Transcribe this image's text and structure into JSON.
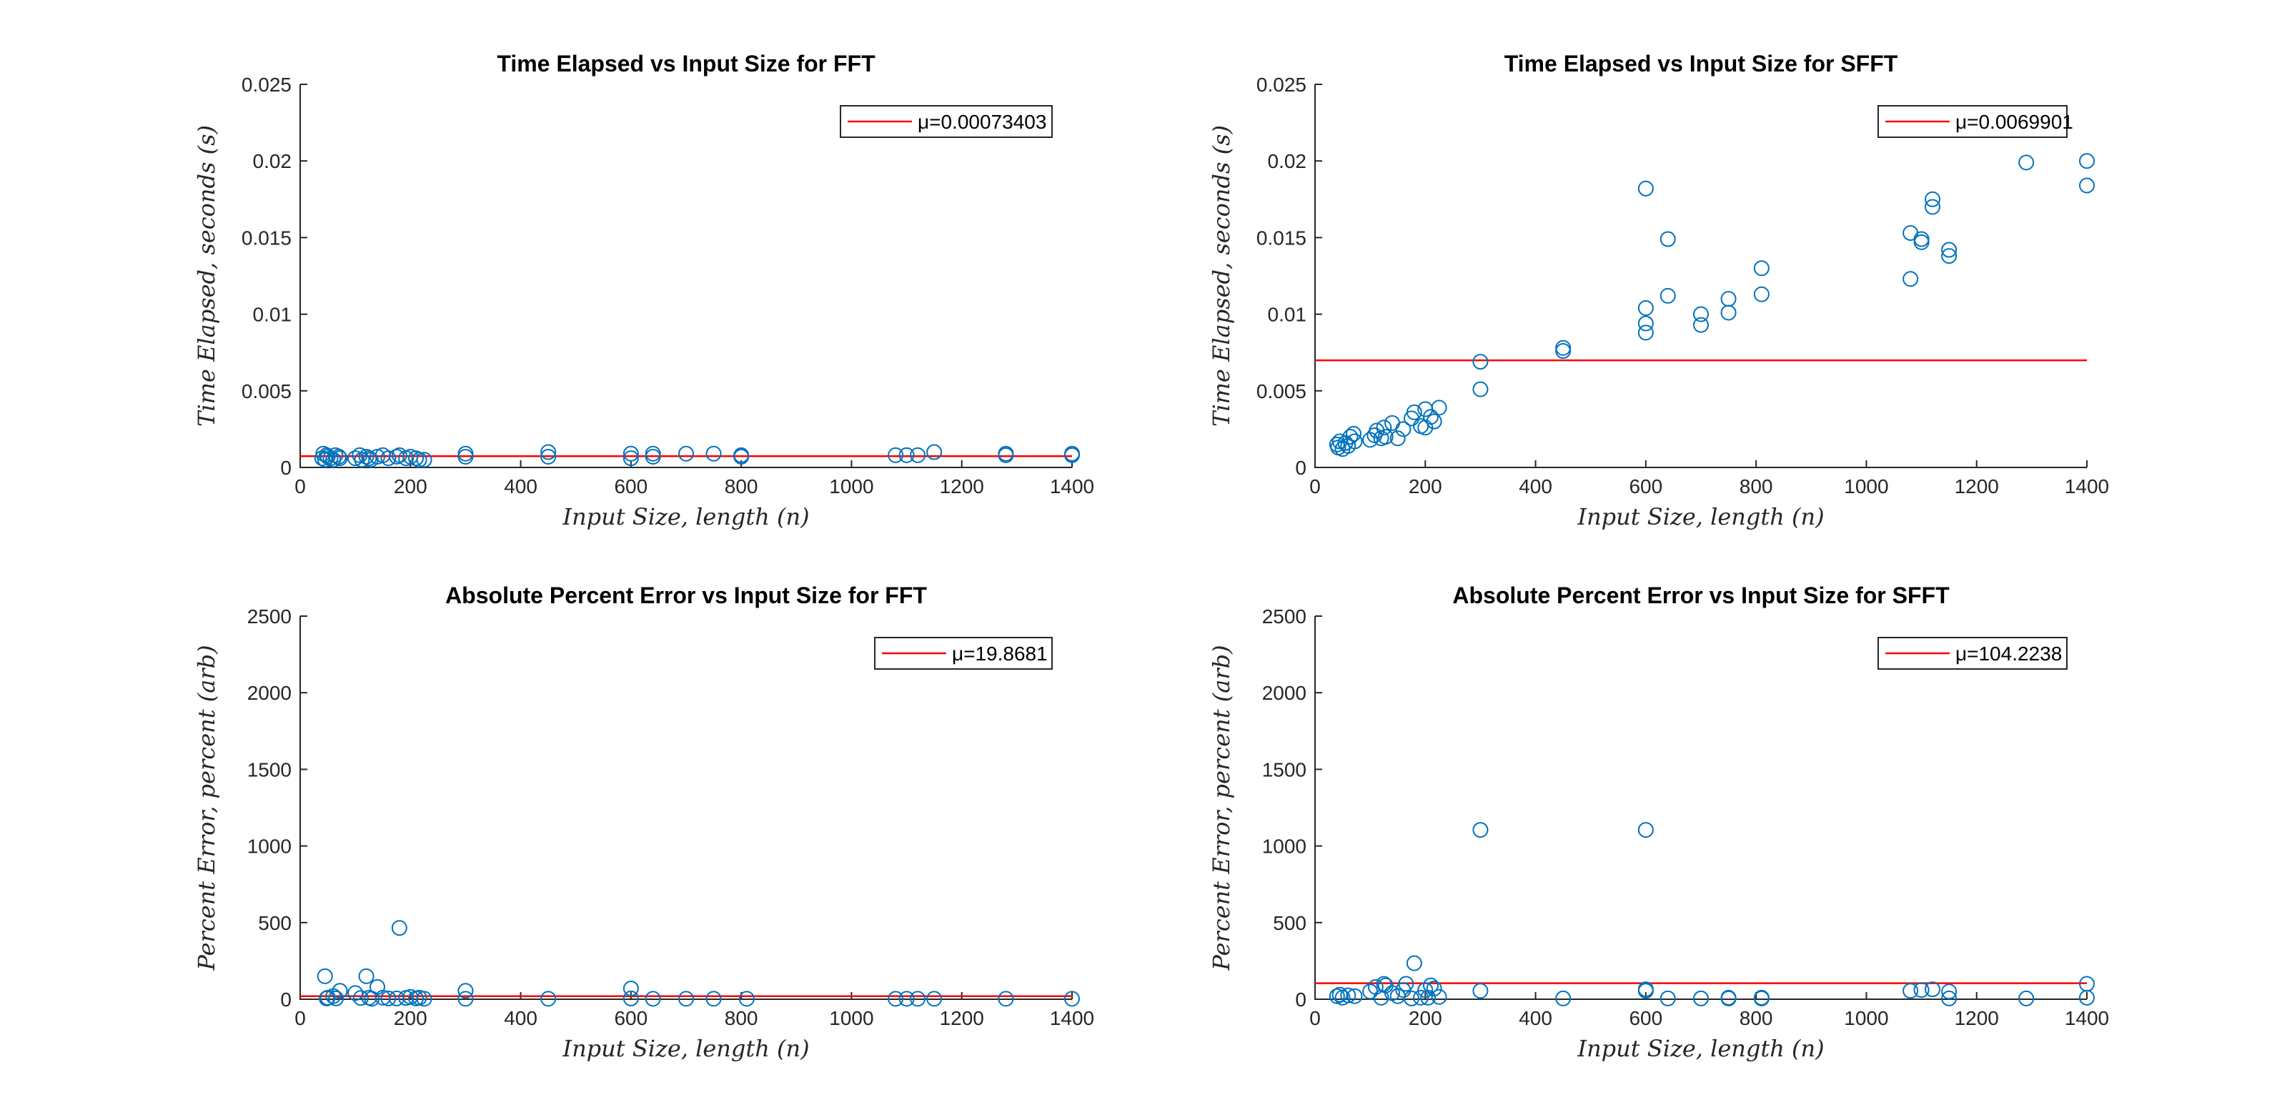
{
  "figure": {
    "colors": {
      "marker": "#0072BD",
      "mean_line": "#ff0000",
      "axis": "#262626"
    }
  },
  "chart_data": [
    {
      "type": "scatter",
      "title": "Time Elapsed vs Input Size for FFT",
      "xlabel": "Input Size, length (n)",
      "ylabel": "Time Elapsed, seconds (s)",
      "xlim": [
        0,
        1400
      ],
      "ylim": [
        0,
        0.025
      ],
      "xticks": [
        0,
        200,
        400,
        600,
        800,
        1000,
        1200,
        1400
      ],
      "yticks": [
        0,
        0.005,
        0.01,
        0.015,
        0.02,
        0.025
      ],
      "xtick_labels": [
        "0",
        "200",
        "400",
        "600",
        "800",
        "1000",
        "1200",
        "1400"
      ],
      "ytick_labels": [
        "0",
        "0.005",
        "0.01",
        "0.015",
        "0.02",
        "0.025"
      ],
      "mean": 0.00073403,
      "legend": {
        "label": "μ=0.00073403",
        "position": "top-right"
      },
      "grid": false,
      "x": [
        40,
        42,
        45,
        48,
        50,
        55,
        60,
        64,
        70,
        72,
        100,
        108,
        112,
        120,
        125,
        128,
        140,
        150,
        160,
        175,
        180,
        192,
        200,
        210,
        216,
        225,
        300,
        300,
        450,
        450,
        600,
        600,
        640,
        640,
        700,
        750,
        800,
        800,
        1080,
        1100,
        1120,
        1150,
        1280,
        1280,
        1400,
        1400
      ],
      "y": [
        0.0006,
        0.0009,
        0.0005,
        0.0008,
        0.0007,
        0.0006,
        0.0005,
        0.0008,
        0.0007,
        0.0006,
        0.0006,
        0.0008,
        0.0005,
        0.0007,
        0.0006,
        0.0005,
        0.0007,
        0.0008,
        0.0006,
        0.0007,
        0.0008,
        0.0006,
        0.0007,
        0.0006,
        0.0005,
        0.0005,
        0.0007,
        0.0009,
        0.0007,
        0.001,
        0.0006,
        0.0009,
        0.0007,
        0.0009,
        0.0009,
        0.0009,
        0.0007,
        0.0008,
        0.0008,
        0.0008,
        0.0008,
        0.001,
        0.0008,
        0.0009,
        0.0008,
        0.0009
      ]
    },
    {
      "type": "scatter",
      "title": "Time Elapsed vs Input Size for SFFT",
      "xlabel": "Input Size, length (n)",
      "ylabel": "Time Elapsed, seconds (s)",
      "xlim": [
        0,
        1400
      ],
      "ylim": [
        0,
        0.025
      ],
      "xticks": [
        0,
        200,
        400,
        600,
        800,
        1000,
        1200,
        1400
      ],
      "yticks": [
        0,
        0.005,
        0.01,
        0.015,
        0.02,
        0.025
      ],
      "xtick_labels": [
        "0",
        "200",
        "400",
        "600",
        "800",
        "1000",
        "1200",
        "1400"
      ],
      "ytick_labels": [
        "0",
        "0.005",
        "0.01",
        "0.015",
        "0.02",
        "0.025"
      ],
      "mean": 0.0069901,
      "legend": {
        "label": "μ=0.0069901",
        "position": "top-right"
      },
      "grid": false,
      "x": [
        40,
        42,
        45,
        50,
        55,
        60,
        64,
        70,
        72,
        100,
        108,
        112,
        120,
        125,
        128,
        140,
        150,
        160,
        175,
        180,
        192,
        200,
        200,
        210,
        216,
        225,
        300,
        300,
        450,
        450,
        600,
        600,
        600,
        600,
        640,
        640,
        700,
        700,
        750,
        750,
        810,
        810,
        1080,
        1080,
        1100,
        1100,
        1120,
        1120,
        1150,
        1150,
        1290,
        1400,
        1400
      ],
      "y": [
        0.0015,
        0.0013,
        0.0017,
        0.0012,
        0.0016,
        0.0014,
        0.002,
        0.0022,
        0.0017,
        0.0018,
        0.0021,
        0.0024,
        0.0019,
        0.0026,
        0.002,
        0.0029,
        0.0019,
        0.0025,
        0.0032,
        0.0036,
        0.0027,
        0.0038,
        0.0026,
        0.0033,
        0.003,
        0.0039,
        0.0051,
        0.0069,
        0.0078,
        0.0076,
        0.0182,
        0.0104,
        0.0094,
        0.0088,
        0.0149,
        0.0112,
        0.01,
        0.0093,
        0.011,
        0.0101,
        0.013,
        0.0113,
        0.0153,
        0.0123,
        0.0149,
        0.0147,
        0.0175,
        0.017,
        0.0142,
        0.0138,
        0.0199,
        0.02,
        0.0184
      ]
    },
    {
      "type": "scatter",
      "title": "Absolute Percent Error vs Input Size for FFT",
      "xlabel": "Input Size, length (n)",
      "ylabel": "Percent Error, percent (arb)",
      "xlim": [
        0,
        1400
      ],
      "ylim": [
        0,
        2500
      ],
      "xticks": [
        0,
        200,
        400,
        600,
        800,
        1000,
        1200,
        1400
      ],
      "yticks": [
        0,
        500,
        1000,
        1500,
        2000,
        2500
      ],
      "xtick_labels": [
        "0",
        "200",
        "400",
        "600",
        "800",
        "1000",
        "1200",
        "1400"
      ],
      "ytick_labels": [
        "0",
        "500",
        "1000",
        "1500",
        "2000",
        "2500"
      ],
      "mean": 19.8681,
      "legend": {
        "label": "μ=19.8681",
        "position": "top-right"
      },
      "grid": false,
      "x": [
        45,
        48,
        50,
        60,
        65,
        72,
        100,
        110,
        120,
        125,
        130,
        140,
        150,
        160,
        175,
        180,
        192,
        200,
        210,
        216,
        225,
        300,
        300,
        450,
        600,
        600,
        640,
        700,
        750,
        810,
        1080,
        1100,
        1120,
        1150,
        1280,
        1400
      ],
      "y": [
        150,
        5,
        10,
        20,
        5,
        55,
        40,
        8,
        150,
        10,
        3,
        80,
        10,
        5,
        5,
        465,
        8,
        15,
        5,
        10,
        3,
        55,
        3,
        3,
        70,
        5,
        3,
        3,
        3,
        3,
        3,
        3,
        3,
        3,
        3,
        3
      ]
    },
    {
      "type": "scatter",
      "title": "Absolute Percent Error vs Input Size for SFFT",
      "xlabel": "Input Size, length (n)",
      "ylabel": "Percent Error, percent (arb)",
      "xlim": [
        0,
        1400
      ],
      "ylim": [
        0,
        2500
      ],
      "xticks": [
        0,
        200,
        400,
        600,
        800,
        1000,
        1200,
        1400
      ],
      "yticks": [
        0,
        500,
        1000,
        1500,
        2000,
        2500
      ],
      "xtick_labels": [
        "0",
        "200",
        "400",
        "600",
        "800",
        "1000",
        "1200",
        "1400"
      ],
      "ytick_labels": [
        "0",
        "500",
        "1000",
        "1500",
        "2000",
        "2500"
      ],
      "mean": 104.2238,
      "legend": {
        "label": "μ=104.2238",
        "position": "top-right"
      },
      "grid": false,
      "x": [
        40,
        45,
        50,
        60,
        72,
        100,
        110,
        120,
        125,
        128,
        140,
        150,
        160,
        165,
        175,
        180,
        192,
        200,
        205,
        210,
        216,
        225,
        300,
        300,
        450,
        600,
        600,
        600,
        640,
        700,
        750,
        750,
        810,
        810,
        1080,
        1100,
        1120,
        1150,
        1150,
        1290,
        1400,
        1400
      ],
      "y": [
        20,
        30,
        10,
        25,
        20,
        50,
        80,
        10,
        100,
        90,
        40,
        20,
        60,
        100,
        5,
        235,
        10,
        60,
        10,
        90,
        70,
        15,
        1105,
        55,
        5,
        1105,
        65,
        55,
        5,
        5,
        5,
        10,
        5,
        10,
        55,
        60,
        65,
        50,
        5,
        5,
        100,
        10
      ]
    }
  ]
}
